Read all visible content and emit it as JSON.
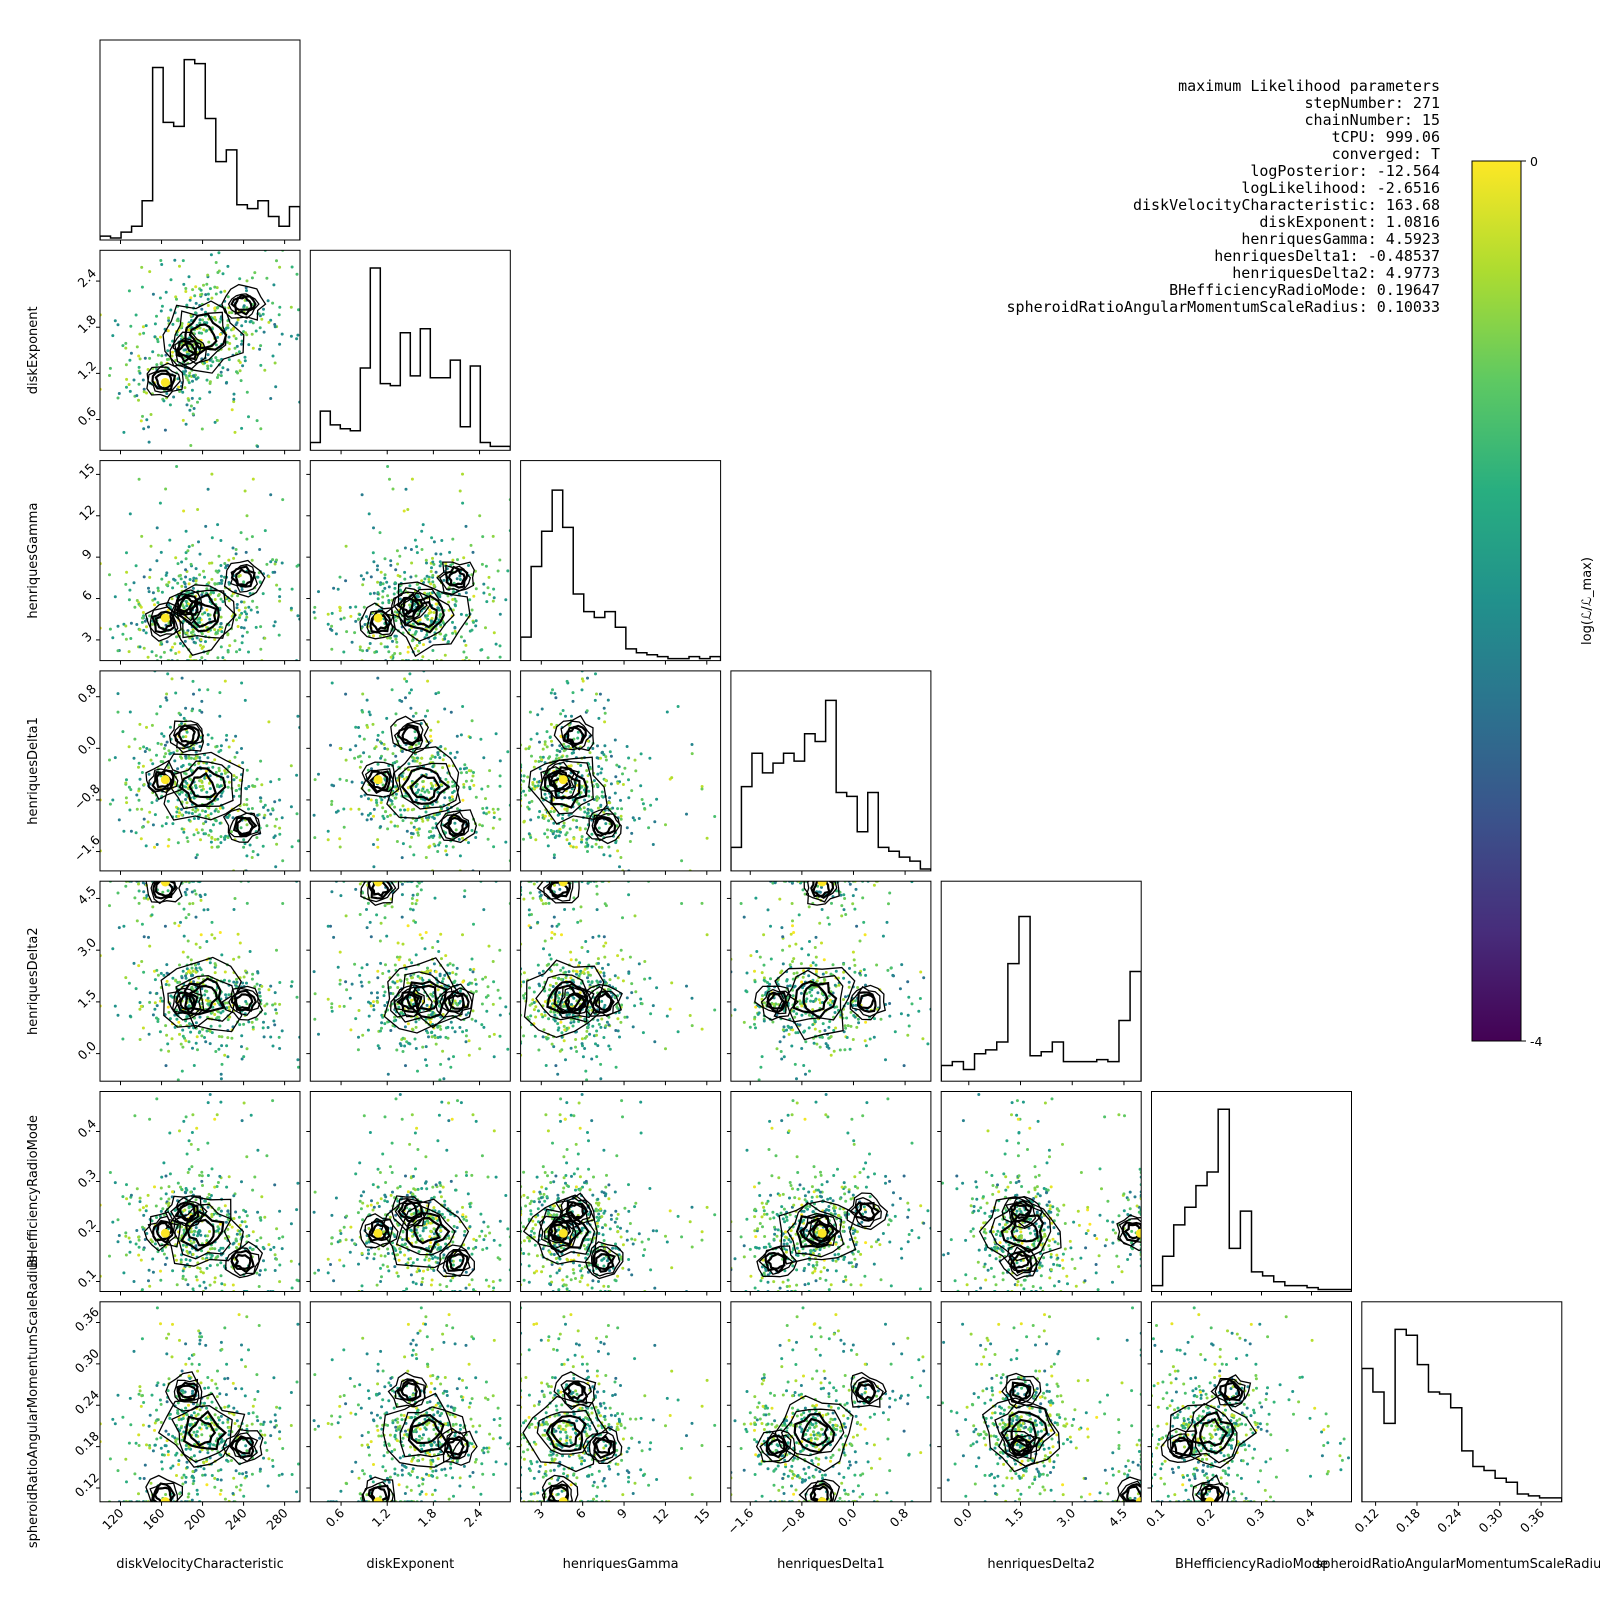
{
  "chart_data": {
    "type": "corner",
    "parameters": [
      {
        "key": "v",
        "label": "diskVelocityCharacteristic",
        "range": [
          100,
          295
        ],
        "ticks": [
          "120",
          "160",
          "200",
          "240",
          "280"
        ],
        "tick_values": [
          120,
          160,
          200,
          240,
          280
        ]
      },
      {
        "key": "e",
        "label": "diskExponent",
        "range": [
          0.2,
          2.8
        ],
        "ticks": [
          "0.6",
          "1.2",
          "1.8",
          "2.4"
        ],
        "tick_values": [
          0.6,
          1.2,
          1.8,
          2.4
        ]
      },
      {
        "key": "g",
        "label": "henriquesGamma",
        "range": [
          1.5,
          16
        ],
        "ticks": [
          "3",
          "6",
          "9",
          "12",
          "15"
        ],
        "tick_values": [
          3,
          6,
          9,
          12,
          15
        ]
      },
      {
        "key": "d1",
        "label": "henriquesDelta1",
        "range": [
          -1.9,
          1.2
        ],
        "ticks": [
          "−1.6",
          "−0.8",
          "0.0",
          "0.8"
        ],
        "tick_values": [
          -1.6,
          -0.8,
          0.0,
          0.8
        ]
      },
      {
        "key": "d2",
        "label": "henriquesDelta2",
        "range": [
          -0.8,
          5.0
        ],
        "ticks": [
          "0.0",
          "1.5",
          "3.0",
          "4.5"
        ],
        "tick_values": [
          0.0,
          1.5,
          3.0,
          4.5
        ]
      },
      {
        "key": "bh",
        "label": "BHefficiencyRadioMode",
        "range": [
          0.08,
          0.48
        ],
        "ticks": [
          "0.1",
          "0.2",
          "0.3",
          "0.4"
        ],
        "tick_values": [
          0.1,
          0.2,
          0.3,
          0.4
        ]
      },
      {
        "key": "sr",
        "label": "spheroidRatioAngularMomentumScaleRadius",
        "range": [
          0.1,
          0.39
        ],
        "ticks": [
          "0.12",
          "0.18",
          "0.24",
          "0.30",
          "0.36"
        ],
        "tick_values": [
          0.12,
          0.18,
          0.24,
          0.3,
          0.36
        ]
      }
    ],
    "histograms": [
      [
        0.02,
        0.01,
        0.04,
        0.07,
        0.2,
        0.88,
        0.6,
        0.58,
        0.92,
        0.9,
        0.62,
        0.4,
        0.46,
        0.18,
        0.16,
        0.2,
        0.12,
        0.07,
        0.17
      ],
      [
        0.04,
        0.2,
        0.13,
        0.11,
        0.1,
        0.42,
        0.93,
        0.34,
        0.33,
        0.6,
        0.38,
        0.62,
        0.37,
        0.37,
        0.46,
        0.12,
        0.43,
        0.04,
        0.02,
        0.02
      ],
      [
        0.12,
        0.48,
        0.66,
        0.87,
        0.68,
        0.34,
        0.25,
        0.22,
        0.25,
        0.17,
        0.06,
        0.04,
        0.03,
        0.02,
        0.01,
        0.01,
        0.02,
        0.01,
        0.02
      ],
      [
        0.12,
        0.43,
        0.6,
        0.5,
        0.55,
        0.6,
        0.56,
        0.7,
        0.66,
        0.87,
        0.4,
        0.38,
        0.2,
        0.4,
        0.12,
        0.1,
        0.07,
        0.05,
        0.01
      ],
      [
        0.08,
        0.1,
        0.06,
        0.14,
        0.16,
        0.2,
        0.6,
        0.84,
        0.13,
        0.15,
        0.2,
        0.1,
        0.1,
        0.1,
        0.11,
        0.1,
        0.31,
        0.56
      ],
      [
        0.03,
        0.18,
        0.34,
        0.43,
        0.54,
        0.61,
        0.93,
        0.22,
        0.41,
        0.1,
        0.08,
        0.05,
        0.03,
        0.03,
        0.02,
        0.01,
        0.01,
        0.01
      ],
      [
        0.68,
        0.56,
        0.4,
        0.88,
        0.85,
        0.7,
        0.56,
        0.55,
        0.48,
        0.26,
        0.18,
        0.16,
        0.12,
        0.1,
        0.04,
        0.03,
        0.02,
        0.02
      ]
    ],
    "colorbar": {
      "label": "log(ℒ/ℒ_max)",
      "min": -4,
      "max": 0,
      "colormap": "viridis",
      "ticks": [
        "0",
        "-4"
      ]
    },
    "max_likelihood_title": "maximum Likelihood parameters",
    "max_likelihood": [
      "stepNumber: 271",
      "chainNumber: 15",
      "tCPU: 999.06",
      "converged: T",
      "logPosterior: -12.564",
      "logLikelihood: -2.6516",
      "diskVelocityCharacteristic: 163.68",
      "diskExponent: 1.0816",
      "henriquesGamma: 4.5923",
      "henriquesDelta1: -0.48537",
      "henriquesDelta2: 4.9773",
      "BHefficiencyRadioMode: 0.19647",
      "spheroidRatioAngularMomentumScaleRadius: 0.10033"
    ],
    "max_likelihood_values": [
      163.68,
      1.0816,
      4.5923,
      -0.48537,
      4.9773,
      0.19647,
      0.10033
    ],
    "centers": [
      {
        "v": 200,
        "e": 1.7,
        "g": 4.8,
        "d1": -0.6,
        "d2": 1.6,
        "bh": 0.2,
        "sr": 0.2
      },
      {
        "v": 162,
        "e": 1.1,
        "g": 4.3,
        "d1": -0.5,
        "d2": 4.8,
        "bh": 0.2,
        "sr": 0.11
      },
      {
        "v": 240,
        "e": 2.1,
        "g": 7.5,
        "d1": -1.2,
        "d2": 1.5,
        "bh": 0.14,
        "sr": 0.18
      },
      {
        "v": 185,
        "e": 1.5,
        "g": 5.5,
        "d1": 0.2,
        "d2": 1.5,
        "bh": 0.24,
        "sr": 0.26
      }
    ],
    "n_samples": 520
  }
}
